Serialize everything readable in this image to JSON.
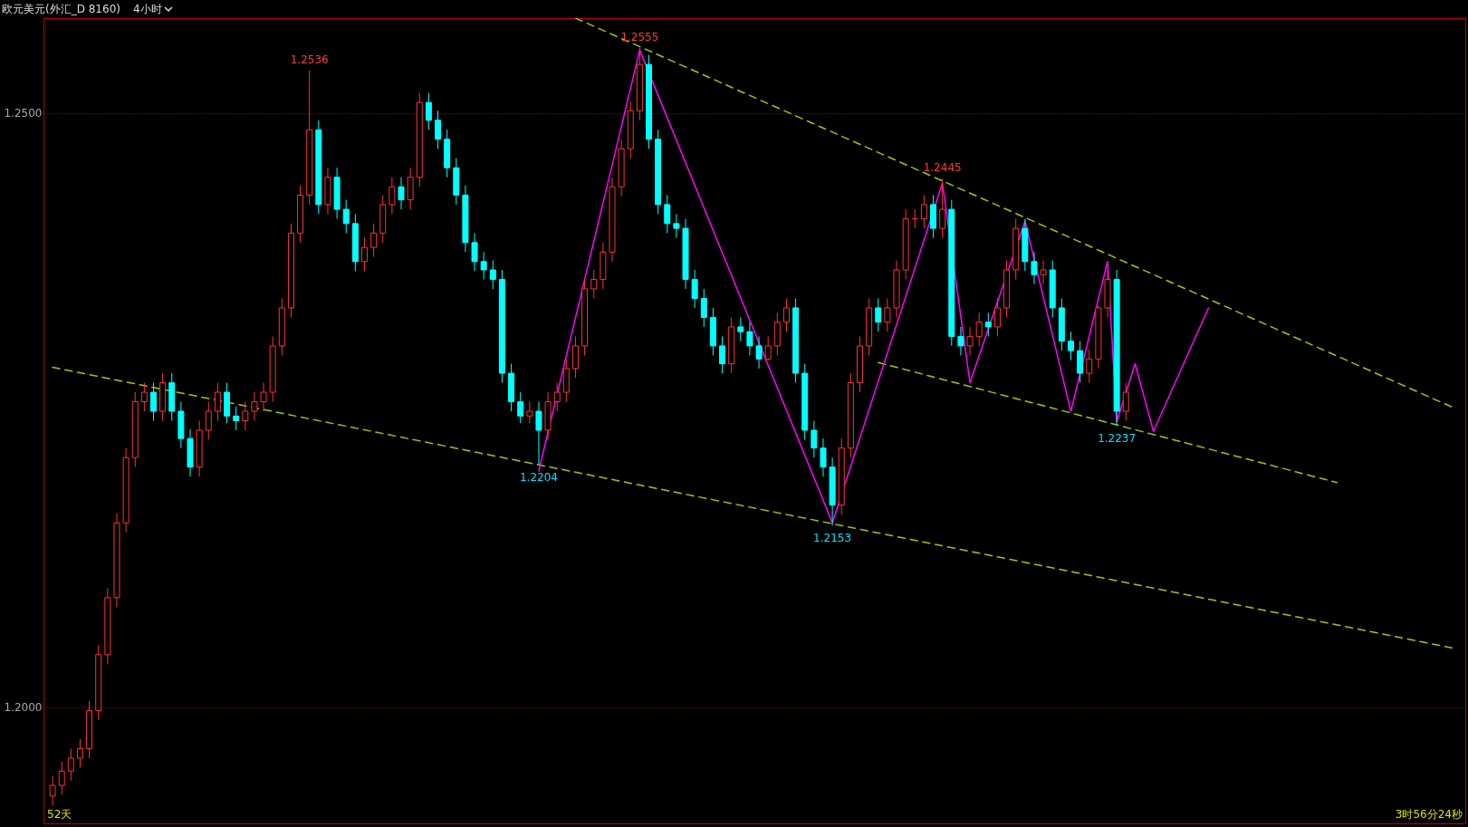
{
  "chart_data": {
    "type": "candlestick",
    "title": "欧元美元(外汇_D 8160)",
    "subtitle": "4小时",
    "categories": [
      null,
      null,
      null,
      null,
      null,
      null,
      null,
      null,
      null,
      null,
      null,
      null,
      null,
      null,
      null,
      null,
      null,
      null,
      null,
      null,
      null,
      null,
      null,
      null,
      null,
      null,
      null,
      null,
      null,
      null,
      null,
      null,
      null,
      null,
      null,
      null,
      null,
      null,
      null,
      null,
      null,
      null,
      null,
      null,
      null,
      null,
      null,
      null,
      null,
      null,
      null,
      null,
      null,
      null,
      null,
      null,
      null,
      null,
      null,
      null,
      null,
      null,
      null,
      null,
      null,
      null,
      null,
      null,
      null,
      null,
      null,
      null,
      null,
      null,
      null,
      null,
      null,
      null,
      null,
      null,
      null,
      null,
      null,
      null,
      null,
      null,
      null,
      null,
      null,
      null,
      null,
      null,
      null,
      null,
      null,
      null,
      null,
      null,
      null,
      null,
      null,
      null,
      null,
      null,
      null,
      null,
      null,
      null,
      null,
      null,
      null,
      null,
      null,
      null,
      null,
      null,
      null,
      null,
      null,
      null,
      null,
      null,
      null,
      null,
      null,
      null,
      null,
      null,
      null,
      null,
      null,
      null,
      null,
      null,
      null,
      null,
      null,
      null,
      null,
      null,
      null,
      null,
      null,
      null,
      null,
      null,
      null,
      null,
      null,
      null,
      null,
      null,
      null,
      null
    ],
    "ohlc": [
      [
        1.1925,
        1.1942,
        1.1917,
        1.1934
      ],
      [
        1.1934,
        1.1954,
        1.1926,
        1.1946
      ],
      [
        1.1946,
        1.1965,
        1.1938,
        1.1957
      ],
      [
        1.1957,
        1.1973,
        1.1949,
        1.1965
      ],
      [
        1.1965,
        1.2005,
        1.1957,
        1.1997
      ],
      [
        1.1997,
        1.2052,
        1.1989,
        1.2044
      ],
      [
        1.2044,
        1.21,
        1.2036,
        1.2092
      ],
      [
        1.2092,
        1.2163,
        1.2084,
        1.2155
      ],
      [
        1.2155,
        1.2218,
        1.2147,
        1.221
      ],
      [
        1.221,
        1.2265,
        1.2202,
        1.2257
      ],
      [
        1.2257,
        1.2273,
        1.2249,
        1.2265
      ],
      [
        1.2265,
        1.2273,
        1.2241,
        1.2249
      ],
      [
        1.2249,
        1.2281,
        1.2241,
        1.2273
      ],
      [
        1.2273,
        1.2281,
        1.2241,
        1.2249
      ],
      [
        1.2249,
        1.2257,
        1.2218,
        1.2226
      ],
      [
        1.2226,
        1.2234,
        1.2194,
        1.2202
      ],
      [
        1.2202,
        1.2241,
        1.2194,
        1.2233
      ],
      [
        1.2233,
        1.2257,
        1.2225,
        1.2249
      ],
      [
        1.2249,
        1.2273,
        1.2241,
        1.2265
      ],
      [
        1.2265,
        1.2273,
        1.2239,
        1.2245
      ],
      [
        1.2245,
        1.2253,
        1.2233,
        1.2241
      ],
      [
        1.2241,
        1.2257,
        1.2233,
        1.2249
      ],
      [
        1.2249,
        1.2265,
        1.2241,
        1.2257
      ],
      [
        1.2257,
        1.2273,
        1.2249,
        1.2265
      ],
      [
        1.2265,
        1.2312,
        1.2257,
        1.2304
      ],
      [
        1.2304,
        1.2344,
        1.2296,
        1.2336
      ],
      [
        1.2336,
        1.2407,
        1.2328,
        1.2399
      ],
      [
        1.2399,
        1.2439,
        1.2391,
        1.2431
      ],
      [
        1.2431,
        1.2536,
        1.2423,
        1.2486
      ],
      [
        1.2486,
        1.2494,
        1.2415,
        1.2423
      ],
      [
        1.2423,
        1.2454,
        1.2415,
        1.2446
      ],
      [
        1.2446,
        1.2454,
        1.2411,
        1.2419
      ],
      [
        1.2419,
        1.2427,
        1.2399,
        1.2407
      ],
      [
        1.2407,
        1.2415,
        1.2367,
        1.2375
      ],
      [
        1.2375,
        1.2395,
        1.2367,
        1.2387
      ],
      [
        1.2387,
        1.2407,
        1.2379,
        1.2399
      ],
      [
        1.2399,
        1.2431,
        1.2391,
        1.2423
      ],
      [
        1.2423,
        1.2446,
        1.2415,
        1.2438
      ],
      [
        1.2438,
        1.2446,
        1.2419,
        1.2427
      ],
      [
        1.2427,
        1.2454,
        1.2419,
        1.2446
      ],
      [
        1.2446,
        1.2517,
        1.2438,
        1.2509
      ],
      [
        1.2509,
        1.2517,
        1.2486,
        1.2494
      ],
      [
        1.2494,
        1.2502,
        1.247,
        1.2478
      ],
      [
        1.2478,
        1.2486,
        1.2446,
        1.2454
      ],
      [
        1.2454,
        1.2462,
        1.2423,
        1.2431
      ],
      [
        1.2431,
        1.2439,
        1.2383,
        1.2391
      ],
      [
        1.2391,
        1.2399,
        1.2367,
        1.2375
      ],
      [
        1.2375,
        1.2383,
        1.236,
        1.2368
      ],
      [
        1.2368,
        1.2376,
        1.2352,
        1.236
      ],
      [
        1.236,
        1.2368,
        1.2273,
        1.2281
      ],
      [
        1.2281,
        1.2289,
        1.2249,
        1.2257
      ],
      [
        1.2257,
        1.2265,
        1.2239,
        1.2245
      ],
      [
        1.2245,
        1.2257,
        1.2239,
        1.2249
      ],
      [
        1.2249,
        1.2257,
        1.2204,
        1.2233
      ],
      [
        1.2233,
        1.2265,
        1.2225,
        1.2257
      ],
      [
        1.2257,
        1.2273,
        1.2249,
        1.2265
      ],
      [
        1.2265,
        1.2293,
        1.2257,
        1.2285
      ],
      [
        1.2285,
        1.2312,
        1.2277,
        1.2304
      ],
      [
        1.2304,
        1.236,
        1.2296,
        1.2352
      ],
      [
        1.2352,
        1.2368,
        1.2344,
        1.236
      ],
      [
        1.236,
        1.2391,
        1.2352,
        1.2383
      ],
      [
        1.2383,
        1.2446,
        1.2375,
        1.2438
      ],
      [
        1.2438,
        1.2478,
        1.243,
        1.247
      ],
      [
        1.247,
        1.251,
        1.2462,
        1.2502
      ],
      [
        1.2502,
        1.2555,
        1.2494,
        1.2541
      ],
      [
        1.2541,
        1.2549,
        1.247,
        1.2478
      ],
      [
        1.2478,
        1.2486,
        1.2415,
        1.2423
      ],
      [
        1.2423,
        1.2431,
        1.2399,
        1.2407
      ],
      [
        1.2407,
        1.2415,
        1.2395,
        1.2403
      ],
      [
        1.2403,
        1.2411,
        1.2352,
        1.236
      ],
      [
        1.236,
        1.2368,
        1.2336,
        1.2344
      ],
      [
        1.2344,
        1.2352,
        1.232,
        1.2328
      ],
      [
        1.2328,
        1.2336,
        1.2296,
        1.2304
      ],
      [
        1.2304,
        1.2312,
        1.2281,
        1.2289
      ],
      [
        1.2289,
        1.2328,
        1.2281,
        1.232
      ],
      [
        1.232,
        1.2328,
        1.2308,
        1.2316
      ],
      [
        1.2316,
        1.2324,
        1.2296,
        1.2304
      ],
      [
        1.2304,
        1.2312,
        1.2285,
        1.2293
      ],
      [
        1.2293,
        1.2312,
        1.2292,
        1.2304
      ],
      [
        1.2304,
        1.2332,
        1.2296,
        1.2324
      ],
      [
        1.2324,
        1.2344,
        1.2316,
        1.2336
      ],
      [
        1.2336,
        1.2344,
        1.2273,
        1.2281
      ],
      [
        1.2281,
        1.2289,
        1.2225,
        1.2233
      ],
      [
        1.2233,
        1.2241,
        1.221,
        1.2218
      ],
      [
        1.2218,
        1.2226,
        1.2194,
        1.2202
      ],
      [
        1.2202,
        1.221,
        1.2153,
        1.217
      ],
      [
        1.217,
        1.2226,
        1.2162,
        1.2218
      ],
      [
        1.2218,
        1.2281,
        1.221,
        1.2273
      ],
      [
        1.2273,
        1.2312,
        1.2265,
        1.2304
      ],
      [
        1.2304,
        1.2344,
        1.2296,
        1.2336
      ],
      [
        1.2336,
        1.2344,
        1.2316,
        1.2324
      ],
      [
        1.2324,
        1.2344,
        1.2316,
        1.2336
      ],
      [
        1.2336,
        1.2376,
        1.2328,
        1.2368
      ],
      [
        1.2368,
        1.2419,
        1.236,
        1.2411
      ],
      [
        1.2411,
        1.2419,
        1.2403,
        1.2411
      ],
      [
        1.2411,
        1.2431,
        1.2403,
        1.2423
      ],
      [
        1.2423,
        1.2431,
        1.2395,
        1.2403
      ],
      [
        1.2403,
        1.2445,
        1.2395,
        1.2419
      ],
      [
        1.2419,
        1.2427,
        1.2304,
        1.2312
      ],
      [
        1.2312,
        1.232,
        1.2296,
        1.2304
      ],
      [
        1.2304,
        1.232,
        1.2296,
        1.2312
      ],
      [
        1.2312,
        1.2332,
        1.2304,
        1.2324
      ],
      [
        1.2324,
        1.2332,
        1.2312,
        1.232
      ],
      [
        1.232,
        1.2344,
        1.2312,
        1.2336
      ],
      [
        1.2336,
        1.2376,
        1.2328,
        1.2368
      ],
      [
        1.2368,
        1.2411,
        1.236,
        1.2403
      ],
      [
        1.2403,
        1.2411,
        1.2367,
        1.2375
      ],
      [
        1.2375,
        1.2383,
        1.2356,
        1.2364
      ],
      [
        1.2364,
        1.2376,
        1.2356,
        1.2368
      ],
      [
        1.2368,
        1.2376,
        1.2328,
        1.2336
      ],
      [
        1.2336,
        1.2344,
        1.23,
        1.2308
      ],
      [
        1.2308,
        1.2316,
        1.2292,
        1.23
      ],
      [
        1.23,
        1.2308,
        1.2273,
        1.2281
      ],
      [
        1.2281,
        1.2301,
        1.2273,
        1.2293
      ],
      [
        1.2293,
        1.2338,
        1.2285,
        1.2336
      ],
      [
        1.2336,
        1.2368,
        1.2328,
        1.236
      ],
      [
        1.236,
        1.2368,
        1.2237,
        1.2249
      ],
      [
        1.2249,
        1.2273,
        1.2241,
        1.2265
      ],
      null,
      null,
      null,
      null,
      null,
      null,
      null,
      null,
      null,
      null,
      null,
      null,
      null,
      null,
      null,
      null,
      null,
      null,
      null,
      null,
      null,
      null,
      null,
      null,
      null,
      null,
      null,
      null,
      null,
      null,
      null,
      null,
      null,
      null,
      null,
      null
    ],
    "series": [
      {
        "type": "line",
        "color": "#99cc00",
        "line_style": "dashed",
        "values": [
          null,
          null,
          null,
          null,
          null,
          null,
          null,
          null,
          null,
          null,
          null,
          null,
          null,
          null,
          null,
          null,
          null,
          null,
          null,
          null,
          null,
          null,
          null,
          null,
          null,
          null,
          null,
          null,
          null,
          null,
          null,
          null,
          null,
          null,
          null,
          null,
          null,
          null,
          null,
          null,
          null,
          null,
          null,
          null,
          null,
          null,
          null,
          null,
          null,
          null,
          null,
          null,
          null,
          null,
          null,
          null,
          null,
          1.258,
          null,
          null,
          null,
          null,
          null,
          null,
          null,
          null,
          null,
          null,
          null,
          null,
          null,
          null,
          null,
          null,
          null,
          null,
          null,
          null,
          null,
          null,
          null,
          null,
          null,
          null,
          null,
          null,
          null,
          null,
          null,
          null,
          null,
          null,
          null,
          null,
          null,
          null,
          null,
          null,
          null,
          null,
          null,
          null,
          null,
          null,
          null,
          null,
          null,
          null,
          null,
          null,
          null,
          null,
          null,
          null,
          null,
          null,
          null,
          null,
          null,
          null,
          null,
          null,
          null,
          null,
          null,
          null,
          null,
          null,
          null,
          null,
          null,
          null,
          null,
          null,
          null,
          null,
          null,
          null,
          null,
          null,
          null,
          null,
          null,
          null,
          null,
          null,
          null,
          null,
          null,
          null,
          null,
          null,
          null,
          1.2251
        ]
      },
      {
        "type": "line",
        "color": "#99cc00",
        "line_style": "dashed",
        "values": [
          null,
          null,
          null,
          null,
          null,
          null,
          null,
          null,
          null,
          null,
          null,
          null,
          null,
          null,
          null,
          null,
          null,
          null,
          null,
          null,
          null,
          null,
          null,
          null,
          null,
          null,
          null,
          null,
          null,
          null,
          null,
          null,
          null,
          null,
          null,
          null,
          null,
          null,
          null,
          null,
          null,
          null,
          null,
          null,
          null,
          null,
          null,
          null,
          null,
          null,
          null,
          null,
          null,
          null,
          null,
          null,
          null,
          null,
          null,
          null,
          null,
          null,
          null,
          null,
          null,
          null,
          null,
          null,
          null,
          null,
          null,
          null,
          null,
          null,
          null,
          null,
          null,
          null,
          null,
          null,
          null,
          null,
          null,
          null,
          null,
          null,
          null,
          null,
          null,
          null,
          1.229,
          null,
          null,
          null,
          null,
          null,
          null,
          null,
          null,
          null,
          null,
          null,
          null,
          null,
          null,
          null,
          null,
          null,
          null,
          null,
          null,
          null,
          null,
          null,
          null,
          null,
          null,
          null,
          null,
          null,
          null,
          null,
          null,
          null,
          null,
          null,
          null,
          null,
          null,
          null,
          null,
          null,
          null,
          null,
          null,
          null,
          null,
          null,
          null,
          null,
          1.2189,
          null,
          null,
          null,
          null,
          null,
          null,
          null,
          null,
          null,
          null,
          null,
          null,
          null
        ]
      },
      {
        "type": "line",
        "color": "#99cc00",
        "line_style": "dashed",
        "values": [
          1.2286,
          null,
          null,
          null,
          null,
          null,
          null,
          null,
          null,
          null,
          null,
          null,
          null,
          null,
          null,
          null,
          null,
          null,
          null,
          null,
          null,
          null,
          null,
          null,
          null,
          null,
          null,
          null,
          null,
          null,
          null,
          null,
          null,
          null,
          null,
          null,
          null,
          null,
          null,
          null,
          null,
          null,
          null,
          null,
          null,
          null,
          null,
          null,
          null,
          null,
          null,
          null,
          null,
          null,
          null,
          null,
          null,
          null,
          null,
          null,
          null,
          null,
          null,
          null,
          null,
          null,
          null,
          null,
          null,
          null,
          null,
          null,
          null,
          null,
          null,
          null,
          null,
          null,
          null,
          null,
          null,
          null,
          null,
          null,
          null,
          null,
          null,
          null,
          null,
          null,
          null,
          null,
          null,
          null,
          null,
          null,
          null,
          null,
          null,
          null,
          null,
          null,
          null,
          null,
          null,
          null,
          null,
          null,
          null,
          null,
          null,
          null,
          null,
          null,
          null,
          null,
          null,
          null,
          null,
          null,
          null,
          null,
          null,
          null,
          null,
          null,
          null,
          null,
          null,
          null,
          null,
          null,
          null,
          null,
          null,
          null,
          null,
          null,
          null,
          null,
          null,
          null,
          null,
          null,
          null,
          null,
          null,
          null,
          null,
          null,
          null,
          null,
          null,
          1.2049
        ]
      },
      {
        "type": "line",
        "color": "#ff00ff",
        "line_style": "solid",
        "values": [
          null,
          null,
          null,
          null,
          null,
          null,
          null,
          null,
          null,
          null,
          null,
          null,
          null,
          null,
          null,
          null,
          null,
          null,
          null,
          null,
          null,
          null,
          null,
          null,
          null,
          null,
          null,
          null,
          null,
          null,
          null,
          null,
          null,
          null,
          null,
          null,
          null,
          null,
          null,
          null,
          null,
          null,
          null,
          null,
          null,
          null,
          null,
          null,
          null,
          null,
          null,
          null,
          null,
          1.2199,
          null,
          null,
          null,
          null,
          null,
          null,
          null,
          null,
          null,
          null,
          1.2553,
          null,
          null,
          null,
          null,
          null,
          null,
          null,
          null,
          null,
          null,
          null,
          null,
          null,
          null,
          null,
          null,
          null,
          null,
          null,
          null,
          1.2155,
          null,
          null,
          null,
          null,
          null,
          null,
          null,
          null,
          null,
          null,
          null,
          1.2441,
          null,
          null,
          1.2273,
          null,
          null,
          null,
          null,
          null,
          1.2409,
          null,
          null,
          null,
          null,
          1.2249,
          null,
          null,
          null,
          1.2375,
          1.224,
          null,
          1.2289,
          null,
          1.2232,
          null,
          null,
          null,
          null,
          null,
          1.2336,
          null,
          null,
          null,
          null,
          null,
          null,
          null,
          null,
          null,
          null,
          null,
          null,
          null,
          null,
          null,
          null,
          null,
          null,
          null,
          null,
          null,
          null,
          null,
          null,
          null,
          null,
          null
        ]
      }
    ],
    "ylim": [
      1.1902,
      1.258
    ],
    "yticks": [
      {
        "value": 1.25,
        "label": "1.2500"
      },
      {
        "value": 1.2,
        "label": "1.2000"
      }
    ],
    "tick_labels": "y",
    "grid": "y",
    "annotations": [
      {
        "text": "1.2536",
        "y": 1.2536
      },
      {
        "text": "1.2555",
        "y": 1.2555
      },
      {
        "text": "1.2204",
        "y": 1.2204
      },
      {
        "text": "1.2153",
        "y": 1.2153
      },
      {
        "text": "1.2445",
        "y": 1.2445
      },
      {
        "text": "1.2237",
        "y": 1.2237
      },
      "52天",
      "3时56分24秒"
    ]
  }
}
